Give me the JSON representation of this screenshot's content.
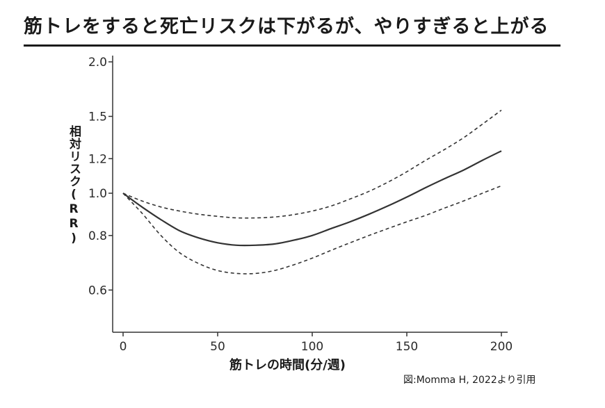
{
  "title": "筋トレをすると死亡リスクは下がるが、やりすぎると上がる",
  "source": "図:Momma H, 2022より引用",
  "chart_data": {
    "type": "line",
    "ylabel": "相対リスク(RR)",
    "xlabel": "筋トレの時間(分/週)",
    "xlim": [
      0,
      200
    ],
    "ylim": [
      0.5,
      2.0
    ],
    "y_scale": "log",
    "x_ticks": [
      0,
      50,
      100,
      150,
      200
    ],
    "y_ticks": [
      2.0,
      1.5,
      1.2,
      1.0,
      0.8,
      0.6
    ],
    "y_tick_labels": [
      "2.0",
      "1.5",
      "1.2",
      "1.0",
      "0.8",
      "0.6"
    ],
    "grid": false,
    "series": [
      {
        "style": "solid",
        "color": "#333333",
        "x": [
          0,
          10,
          20,
          30,
          40,
          50,
          60,
          70,
          80,
          90,
          100,
          110,
          120,
          130,
          140,
          150,
          160,
          170,
          180,
          190,
          200
        ],
        "y": [
          1.0,
          0.93,
          0.87,
          0.82,
          0.79,
          0.77,
          0.76,
          0.76,
          0.765,
          0.78,
          0.8,
          0.83,
          0.86,
          0.895,
          0.935,
          0.98,
          1.03,
          1.08,
          1.13,
          1.19,
          1.25
        ]
      },
      {
        "style": "dashed",
        "color": "#333333",
        "x": [
          0,
          10,
          20,
          30,
          40,
          50,
          60,
          70,
          80,
          90,
          100,
          110,
          120,
          130,
          140,
          150,
          160,
          170,
          180,
          190,
          200
        ],
        "y": [
          1.0,
          0.96,
          0.93,
          0.91,
          0.895,
          0.885,
          0.878,
          0.878,
          0.882,
          0.893,
          0.91,
          0.935,
          0.97,
          1.01,
          1.06,
          1.12,
          1.19,
          1.26,
          1.34,
          1.44,
          1.55
        ]
      },
      {
        "style": "dashed",
        "color": "#333333",
        "x": [
          0,
          10,
          20,
          30,
          40,
          50,
          60,
          70,
          80,
          90,
          100,
          110,
          120,
          130,
          140,
          150,
          160,
          170,
          180,
          190,
          200
        ],
        "y": [
          1.0,
          0.9,
          0.8,
          0.73,
          0.69,
          0.665,
          0.655,
          0.655,
          0.665,
          0.685,
          0.71,
          0.74,
          0.77,
          0.8,
          0.83,
          0.86,
          0.89,
          0.925,
          0.96,
          1.0,
          1.04
        ]
      }
    ]
  }
}
